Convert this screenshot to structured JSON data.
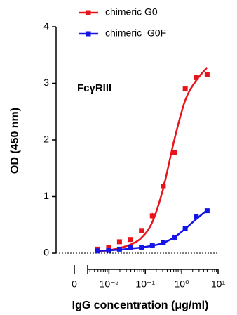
{
  "chart_data": {
    "type": "dose_response",
    "annotation": "FcγRIII",
    "xlabel": "IgG concentration (μg/ml)",
    "ylabel": "OD (450 nm)",
    "xscale": "log",
    "xlim": [
      0.0026,
      10
    ],
    "xticks": [
      {
        "value": 0.01,
        "label": "10⁻²"
      },
      {
        "value": 0.1,
        "label": "10⁻¹"
      },
      {
        "value": 1,
        "label": "10⁰"
      },
      {
        "value": 10,
        "label": "10¹"
      }
    ],
    "x_break_tick": 0,
    "minor_ticks": true,
    "ylim": [
      0,
      4
    ],
    "yticks": [
      0,
      1,
      2,
      3,
      4
    ],
    "legend": "top-left",
    "x": [
      0.0049,
      0.0098,
      0.0195,
      0.039,
      0.078,
      0.156,
      0.3125,
      0.625,
      1.25,
      2.5,
      5
    ],
    "series": [
      {
        "name": "chimeric G0",
        "color": "#e8141b",
        "values": [
          0.07,
          0.1,
          0.2,
          0.24,
          0.4,
          0.66,
          1.18,
          1.78,
          2.9,
          3.1,
          3.15
        ],
        "errors": [
          0.02,
          0.02,
          0.02,
          0.03,
          0.04,
          0.05,
          0.08,
          0.03,
          0.03,
          0.03,
          0.03
        ],
        "fit_x": [
          0.0049,
          0.0098,
          0.0195,
          0.039,
          0.078,
          0.156,
          0.3125,
          0.625,
          1.25,
          2.5,
          5
        ],
        "fit_values": [
          0.03,
          0.05,
          0.09,
          0.15,
          0.27,
          0.55,
          1.15,
          2.0,
          2.7,
          3.05,
          3.28
        ]
      },
      {
        "name": "chimeric  G0F",
        "color": "#1414e6",
        "values": [
          0.04,
          0.05,
          0.07,
          0.1,
          0.1,
          0.13,
          0.19,
          0.28,
          0.43,
          0.64,
          0.75
        ],
        "errors": [
          0.01,
          0.01,
          0.01,
          0.01,
          0.01,
          0.01,
          0.02,
          0.02,
          0.02,
          0.02,
          0.02
        ],
        "fit_x": [
          0.0049,
          0.0098,
          0.0195,
          0.039,
          0.078,
          0.156,
          0.3125,
          0.625,
          1.25,
          2.5,
          5
        ],
        "fit_values": [
          0.04,
          0.05,
          0.06,
          0.08,
          0.1,
          0.13,
          0.18,
          0.28,
          0.43,
          0.6,
          0.76
        ]
      }
    ]
  }
}
